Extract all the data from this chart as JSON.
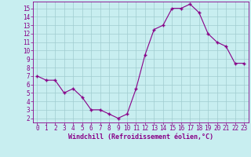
{
  "x": [
    0,
    1,
    2,
    3,
    4,
    5,
    6,
    7,
    8,
    9,
    10,
    11,
    12,
    13,
    14,
    15,
    16,
    17,
    18,
    19,
    20,
    21,
    22,
    23
  ],
  "y": [
    7.0,
    6.5,
    6.5,
    5.0,
    5.5,
    4.5,
    3.0,
    3.0,
    2.5,
    2.0,
    2.5,
    5.5,
    9.5,
    12.5,
    13.0,
    15.0,
    15.0,
    15.5,
    14.5,
    12.0,
    11.0,
    10.5,
    8.5,
    8.5
  ],
  "line_color": "#880088",
  "marker_color": "#880088",
  "bg_color": "#c8eef0",
  "grid_color": "#a0ccd0",
  "xlabel": "Windchill (Refroidissement éolien,°C)",
  "ylim": [
    1.5,
    15.8
  ],
  "xlim": [
    -0.5,
    23.5
  ],
  "yticks": [
    2,
    3,
    4,
    5,
    6,
    7,
    8,
    9,
    10,
    11,
    12,
    13,
    14,
    15
  ],
  "xticks": [
    0,
    1,
    2,
    3,
    4,
    5,
    6,
    7,
    8,
    9,
    10,
    11,
    12,
    13,
    14,
    15,
    16,
    17,
    18,
    19,
    20,
    21,
    22,
    23
  ],
  "tick_label_color": "#880088",
  "axis_label_color": "#880088",
  "tick_fontsize": 5.5,
  "xlabel_fontsize": 6.0
}
